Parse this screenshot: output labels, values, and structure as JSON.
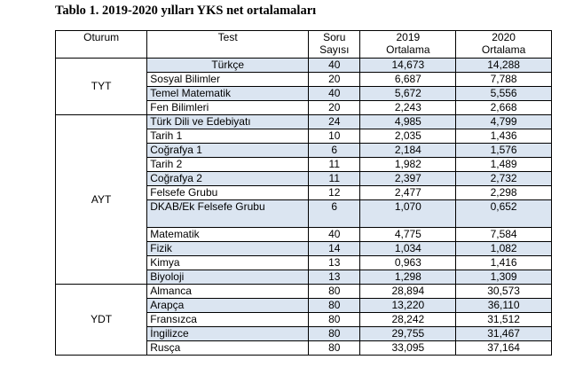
{
  "caption": "Tablo 1. 2019-2020 yılları YKS net ortalamaları",
  "headers": {
    "oturum": "Oturum",
    "test": "Test",
    "soru_1": "Soru",
    "soru_2": "Sayısı",
    "y2019_1": "2019",
    "y2019_2": "Ortalama",
    "y2020_1": "2020",
    "y2020_2": "Ortalama"
  },
  "groups": [
    {
      "name": "TYT",
      "rows": [
        {
          "test": "Türkçe",
          "soru": "40",
          "y2019": "14,673",
          "y2020": "14,288",
          "shaded": true,
          "center": true
        },
        {
          "test": "Sosyal Bilimler",
          "soru": "20",
          "y2019": "6,687",
          "y2020": "7,788",
          "shaded": false
        },
        {
          "test": "Temel Matematik",
          "soru": "40",
          "y2019": "5,672",
          "y2020": "5,556",
          "shaded": true
        },
        {
          "test": "Fen Bilimleri",
          "soru": "20",
          "y2019": "2,243",
          "y2020": "2,668",
          "shaded": false
        }
      ]
    },
    {
      "name": "AYT",
      "rows": [
        {
          "test": "Türk Dili ve Edebiyatı",
          "soru": "24",
          "y2019": "4,985",
          "y2020": "4,799",
          "shaded": true
        },
        {
          "test": "Tarih 1",
          "soru": "10",
          "y2019": "2,035",
          "y2020": "1,436",
          "shaded": false
        },
        {
          "test": "Coğrafya 1",
          "soru": "6",
          "y2019": "2,184",
          "y2020": "1,576",
          "shaded": true
        },
        {
          "test": "Tarih 2",
          "soru": "11",
          "y2019": "1,982",
          "y2020": "1,489",
          "shaded": false
        },
        {
          "test": "Coğrafya 2",
          "soru": "11",
          "y2019": "2,397",
          "y2020": "2,732",
          "shaded": true
        },
        {
          "test": "Felsefe Grubu",
          "soru": "12",
          "y2019": "2,477",
          "y2020": "2,298",
          "shaded": false
        },
        {
          "test": "DKAB/Ek Felsefe Grubu",
          "soru": "6",
          "y2019": "1,070",
          "y2020": "0,652",
          "shaded": true,
          "tall": true
        },
        {
          "test": "Matematik",
          "soru": "40",
          "y2019": "4,775",
          "y2020": "7,584",
          "shaded": false
        },
        {
          "test": "Fizik",
          "soru": "14",
          "y2019": "1,034",
          "y2020": "1,082",
          "shaded": true
        },
        {
          "test": "Kimya",
          "soru": "13",
          "y2019": "0,963",
          "y2020": "1,416",
          "shaded": false
        },
        {
          "test": "Biyoloji",
          "soru": "13",
          "y2019": "1,298",
          "y2020": "1,309",
          "shaded": true
        }
      ]
    },
    {
      "name": "YDT",
      "rows": [
        {
          "test": "Almanca",
          "soru": "80",
          "y2019": "28,894",
          "y2020": "30,573",
          "shaded": false
        },
        {
          "test": "Arapça",
          "soru": "80",
          "y2019": "13,220",
          "y2020": "36,110",
          "shaded": true
        },
        {
          "test": "Fransızca",
          "soru": "80",
          "y2019": "28,242",
          "y2020": "31,512",
          "shaded": false
        },
        {
          "test": "İngilizce",
          "soru": "80",
          "y2019": "29,755",
          "y2020": "31,467",
          "shaded": true
        },
        {
          "test": "Rusça",
          "soru": "80",
          "y2019": "33,095",
          "y2020": "37,164",
          "shaded": false
        }
      ]
    }
  ]
}
